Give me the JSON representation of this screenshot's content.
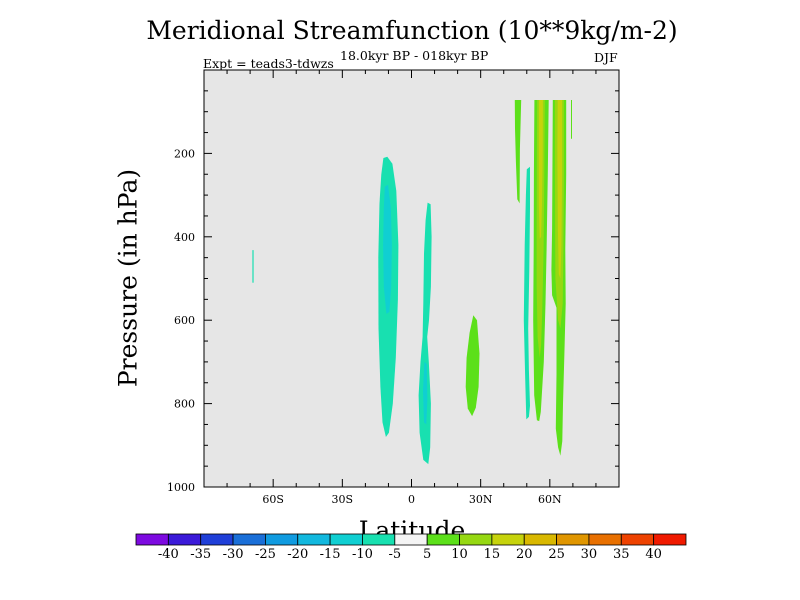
{
  "chart_data": {
    "type": "contour",
    "title": "Meridional Streamfunction (10**9kg/m-2)",
    "subtitle": "18.0kyr BP - 018kyr BP",
    "experiment": "Expt = teads3-tdwzs",
    "season": "DJF",
    "xlabel": "Latitude",
    "ylabel": "Pressure (in hPa)",
    "xlim": [
      -90,
      90
    ],
    "ylim": [
      1000,
      0
    ],
    "x_ticks": [
      {
        "value": -60,
        "label": "60S"
      },
      {
        "value": -30,
        "label": "30S"
      },
      {
        "value": 0,
        "label": "0"
      },
      {
        "value": 30,
        "label": "30N"
      },
      {
        "value": 60,
        "label": "60N"
      }
    ],
    "y_ticks": [
      {
        "value": 200,
        "label": "200"
      },
      {
        "value": 400,
        "label": "400"
      },
      {
        "value": 600,
        "label": "600"
      },
      {
        "value": 800,
        "label": "800"
      },
      {
        "value": 1000,
        "label": "1000"
      }
    ],
    "colorbar": {
      "labels": [
        "-40",
        "-35",
        "-30",
        "-25",
        "-20",
        "-15",
        "-10",
        "-5",
        "5",
        "10",
        "15",
        "20",
        "25",
        "30",
        "35",
        "40"
      ],
      "colors": [
        "#7d0ae0",
        "#3b1ad9",
        "#1f3fd8",
        "#1a6fd8",
        "#109be0",
        "#12b8de",
        "#10cfd2",
        "#18e0b0",
        "#f4f4f4",
        "#5ce01a",
        "#96d812",
        "#c6d30c",
        "#d9b800",
        "#e09600",
        "#e87000",
        "#ee4200",
        "#f01a00"
      ]
    },
    "regions": [
      {
        "name": "contour-sh-negative-main",
        "class": "-10 to -5",
        "color": "#18e0b0",
        "points": [
          [
            -12.2,
            211
          ],
          [
            -10.5,
            208
          ],
          [
            -8.3,
            225
          ],
          [
            -6.6,
            290
          ],
          [
            -5.7,
            420
          ],
          [
            -5.9,
            550
          ],
          [
            -6.8,
            690
          ],
          [
            -8.1,
            800
          ],
          [
            -9.8,
            870
          ],
          [
            -11.1,
            880
          ],
          [
            -12.6,
            845
          ],
          [
            -13.5,
            760
          ],
          [
            -14.3,
            620
          ],
          [
            -14.4,
            450
          ],
          [
            -13.9,
            320
          ],
          [
            -13.1,
            250
          ]
        ]
      },
      {
        "name": "contour-sh-negative-core",
        "class": "-15 to -10",
        "color": "#10cfd2",
        "points": [
          [
            -11.6,
            280
          ],
          [
            -10.2,
            275
          ],
          [
            -9.0,
            330
          ],
          [
            -8.5,
            420
          ],
          [
            -8.8,
            520
          ],
          [
            -9.6,
            580
          ],
          [
            -10.9,
            585
          ],
          [
            -12.0,
            520
          ],
          [
            -12.3,
            420
          ],
          [
            -12.0,
            330
          ]
        ]
      },
      {
        "name": "contour-equatorial-negative",
        "class": "-10 to -5",
        "color": "#18e0b0",
        "points": [
          [
            7.0,
            318
          ],
          [
            8.3,
            322
          ],
          [
            8.7,
            400
          ],
          [
            8.4,
            520
          ],
          [
            7.6,
            600
          ],
          [
            6.8,
            640
          ],
          [
            7.5,
            700
          ],
          [
            8.4,
            800
          ],
          [
            8.1,
            905
          ],
          [
            7.3,
            945
          ],
          [
            5.1,
            935
          ],
          [
            3.5,
            870
          ],
          [
            3.1,
            780
          ],
          [
            3.9,
            700
          ],
          [
            4.8,
            640
          ],
          [
            5.1,
            560
          ],
          [
            5.4,
            440
          ],
          [
            6.1,
            360
          ]
        ]
      },
      {
        "name": "contour-equatorial-negative-core",
        "class": "-15 to -10",
        "color": "#10cfd2",
        "points": [
          [
            5.6,
            700
          ],
          [
            6.6,
            705
          ],
          [
            6.9,
            790
          ],
          [
            6.4,
            850
          ],
          [
            5.4,
            845
          ],
          [
            5.0,
            770
          ]
        ]
      },
      {
        "name": "contour-sh-sliver",
        "class": "-10 to -5",
        "color": "#18e0b0",
        "points": [
          [
            -69.0,
            432
          ],
          [
            -68.5,
            432
          ],
          [
            -68.5,
            510
          ],
          [
            -69.0,
            510
          ]
        ]
      },
      {
        "name": "contour-30n-positive",
        "class": "5 to 10",
        "color": "#5ce01a",
        "points": [
          [
            26.8,
            588
          ],
          [
            28.4,
            600
          ],
          [
            29.5,
            680
          ],
          [
            29.1,
            760
          ],
          [
            27.9,
            810
          ],
          [
            26.3,
            830
          ],
          [
            24.4,
            812
          ],
          [
            23.5,
            760
          ],
          [
            23.9,
            690
          ],
          [
            25.2,
            630
          ]
        ]
      },
      {
        "name": "contour-45n-positive-upper",
        "class": "5 to 10",
        "color": "#5ce01a",
        "points": [
          [
            44.8,
            72
          ],
          [
            47.6,
            72
          ],
          [
            47.0,
            190
          ],
          [
            46.9,
            320
          ],
          [
            45.9,
            310
          ],
          [
            45.3,
            220
          ],
          [
            44.9,
            140
          ]
        ]
      },
      {
        "name": "contour-50n-negative",
        "class": "-10 to -5",
        "color": "#18e0b0",
        "points": [
          [
            50.0,
            238
          ],
          [
            51.4,
            232
          ],
          [
            51.4,
            330
          ],
          [
            51.1,
            480
          ],
          [
            50.6,
            620
          ],
          [
            50.9,
            720
          ],
          [
            51.4,
            805
          ],
          [
            50.9,
            832
          ],
          [
            49.8,
            838
          ],
          [
            49.3,
            740
          ],
          [
            48.7,
            600
          ],
          [
            49.1,
            420
          ],
          [
            49.6,
            300
          ]
        ]
      },
      {
        "name": "contour-55n-positive",
        "class": "5 to 10",
        "color": "#5ce01a",
        "points": [
          [
            53.3,
            72
          ],
          [
            59.5,
            72
          ],
          [
            59.1,
            250
          ],
          [
            58.6,
            430
          ],
          [
            58.1,
            560
          ],
          [
            57.4,
            700
          ],
          [
            56.1,
            820
          ],
          [
            55.4,
            842
          ],
          [
            54.4,
            840
          ],
          [
            53.2,
            780
          ],
          [
            52.8,
            600
          ],
          [
            53.0,
            420
          ],
          [
            53.1,
            250
          ]
        ]
      },
      {
        "name": "contour-55n-positive-core",
        "class": "10 to 15",
        "color": "#96d812",
        "points": [
          [
            54.5,
            72
          ],
          [
            57.8,
            72
          ],
          [
            57.6,
            250
          ],
          [
            57.3,
            430
          ],
          [
            56.7,
            580
          ],
          [
            56.2,
            660
          ],
          [
            55.6,
            690
          ],
          [
            54.7,
            640
          ],
          [
            54.3,
            520
          ],
          [
            54.3,
            380
          ],
          [
            54.4,
            200
          ]
        ]
      },
      {
        "name": "contour-55n-positive-peak",
        "class": "15 to 20",
        "color": "#c6d30c",
        "points": [
          [
            55.3,
            72
          ],
          [
            57.0,
            72
          ],
          [
            56.9,
            200
          ],
          [
            56.6,
            320
          ],
          [
            56.2,
            400
          ],
          [
            55.6,
            405
          ],
          [
            55.2,
            320
          ],
          [
            55.2,
            180
          ]
        ]
      },
      {
        "name": "contour-65n-positive",
        "class": "5 to 10",
        "color": "#5ce01a",
        "points": [
          [
            61.3,
            72
          ],
          [
            67.1,
            72
          ],
          [
            67.1,
            250
          ],
          [
            66.7,
            430
          ],
          [
            66.9,
            560
          ],
          [
            66.3,
            680
          ],
          [
            65.7,
            800
          ],
          [
            65.4,
            890
          ],
          [
            64.6,
            925
          ],
          [
            63.6,
            905
          ],
          [
            62.6,
            860
          ],
          [
            62.9,
            730
          ],
          [
            62.9,
            570
          ],
          [
            61.0,
            540
          ],
          [
            60.7,
            480
          ],
          [
            61.0,
            380
          ],
          [
            61.1,
            250
          ]
        ]
      },
      {
        "name": "contour-65n-positive-core",
        "class": "10 to 15",
        "color": "#96d812",
        "points": [
          [
            62.2,
            72
          ],
          [
            66.1,
            72
          ],
          [
            66.1,
            250
          ],
          [
            65.9,
            430
          ],
          [
            65.6,
            560
          ],
          [
            64.6,
            620
          ],
          [
            63.6,
            600
          ],
          [
            62.4,
            500
          ],
          [
            62.3,
            350
          ],
          [
            62.2,
            200
          ]
        ]
      },
      {
        "name": "contour-65n-positive-peak",
        "class": "15 to 20",
        "color": "#c6d30c",
        "points": [
          [
            63.4,
            72
          ],
          [
            65.3,
            72
          ],
          [
            65.3,
            250
          ],
          [
            65.0,
            420
          ],
          [
            64.6,
            500
          ],
          [
            63.9,
            490
          ],
          [
            63.5,
            380
          ],
          [
            63.3,
            200
          ]
        ]
      },
      {
        "name": "contour-70n-sliver",
        "class": "5 to 10",
        "color": "#5ce01a",
        "points": [
          [
            69.2,
            72
          ],
          [
            69.6,
            72
          ],
          [
            69.6,
            165
          ],
          [
            69.2,
            165
          ]
        ]
      }
    ]
  }
}
